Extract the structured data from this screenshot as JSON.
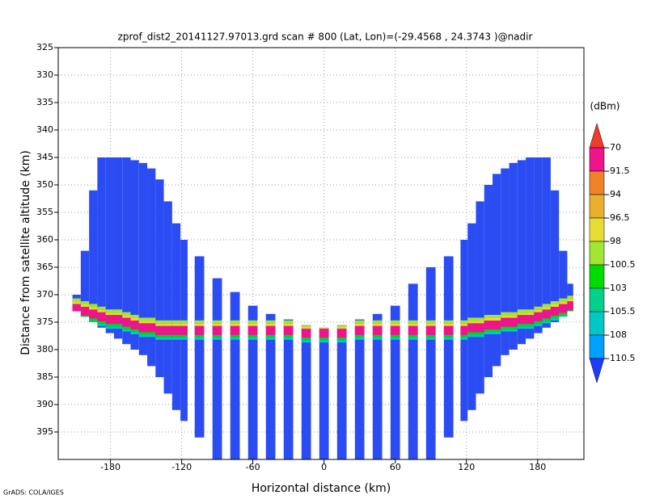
{
  "chart_data": {
    "type": "swath",
    "title": "zprof_dist2_20141127.97013.grd  scan # 800  (Lat, Lon)=(-29.4568 , 24.3743 )@nadir",
    "x_label": "Horizontal distance (km)",
    "y_label": "Distance from satellite altitude (km)",
    "footer": "GrADS: COLA/IGES",
    "xlim": [
      -224,
      219
    ],
    "ylim": [
      400,
      325
    ],
    "xticks": [
      -180,
      -120,
      -60,
      0,
      60,
      120,
      180
    ],
    "yticks": [
      325,
      330,
      335,
      340,
      345,
      350,
      355,
      360,
      365,
      370,
      375,
      380,
      385,
      390,
      395
    ],
    "grid": true,
    "swath_color": "#2a4cf2",
    "columns": {
      "x_left": [
        -212,
        -205,
        -198,
        -191,
        -184,
        -177,
        -170,
        -163,
        -156,
        -149,
        -142,
        -135,
        -128,
        -121,
        -109,
        -94,
        -79,
        -64,
        -49,
        -34,
        -19,
        -4,
        11,
        26,
        41,
        56,
        71,
        86,
        101,
        115,
        121,
        128,
        135,
        142,
        149,
        156,
        163,
        170,
        177,
        184,
        191,
        198,
        205
      ],
      "x_right": [
        -205,
        -198,
        -191,
        -184,
        -177,
        -170,
        -163,
        -156,
        -149,
        -142,
        -135,
        -128,
        -121,
        -115,
        -101,
        -86,
        -71,
        -56,
        -41,
        -26,
        -11,
        4,
        19,
        34,
        49,
        64,
        79,
        94,
        109,
        121,
        128,
        135,
        142,
        149,
        156,
        163,
        170,
        177,
        184,
        191,
        198,
        205,
        210
      ],
      "top": [
        370,
        362,
        351,
        345,
        345,
        345,
        345,
        345.5,
        346,
        347,
        349,
        353,
        357,
        360,
        363,
        367,
        369.5,
        372,
        373.5,
        374.5,
        375.5,
        376,
        375.5,
        374.5,
        373.5,
        372,
        368,
        365,
        363,
        360,
        357,
        353,
        350,
        348,
        347,
        346,
        345.5,
        345,
        345,
        345,
        351,
        362,
        368
      ],
      "bottom": [
        373,
        374,
        375,
        376,
        377,
        378,
        379,
        380,
        381,
        383,
        385,
        388,
        391,
        393,
        396,
        400,
        400,
        400,
        400,
        400,
        400,
        400,
        400,
        400,
        400,
        400,
        400,
        400,
        396,
        393,
        391,
        388,
        385,
        383,
        381,
        380,
        379,
        378,
        377,
        376,
        375,
        374,
        373
      ],
      "surface": [
        372,
        372.5,
        373,
        373.5,
        374,
        374,
        374.5,
        375,
        375.5,
        375.5,
        376,
        376,
        376,
        376,
        376,
        376,
        376,
        376,
        376,
        376,
        376.5,
        376.5,
        376.5,
        376,
        376,
        376,
        376,
        376,
        376,
        376,
        375.5,
        375.5,
        375,
        375,
        374.5,
        374.5,
        374,
        374,
        373.5,
        373,
        372.5,
        372,
        371.5
      ]
    },
    "colorbar": {
      "unit": "(dBm)",
      "levels": [
        -70,
        -91.5,
        -94,
        -96.5,
        -98,
        -100.5,
        -103,
        -105.5,
        -108,
        -110.5
      ],
      "colors": [
        "#f03c2c",
        "#f0148c",
        "#f08228",
        "#e6af2d",
        "#e6dc32",
        "#a0e632",
        "#00dc00",
        "#00d28c",
        "#00c8c8",
        "#00a0ff",
        "#1e3cff"
      ]
    }
  }
}
